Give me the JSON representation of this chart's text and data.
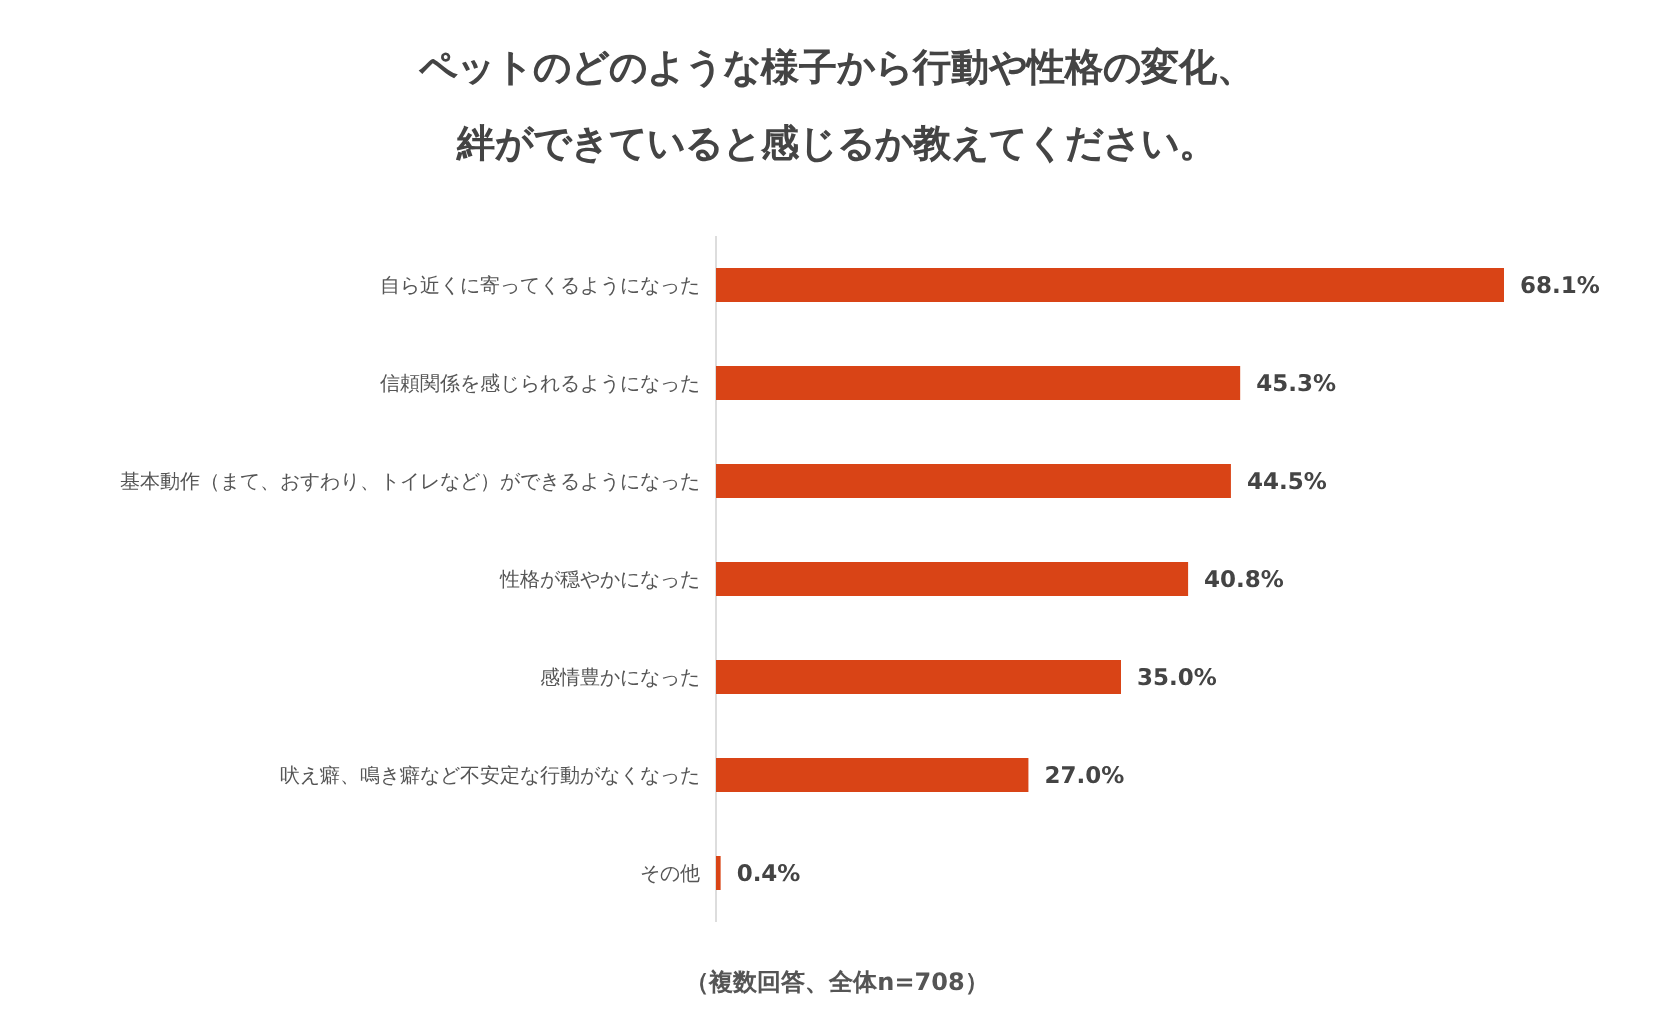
{
  "chart_data": {
    "type": "bar",
    "orientation": "horizontal",
    "title": "ペットのどのような様子から行動や性格の変化、絆ができていると感じるか教えてください。",
    "categories": [
      "自ら近くに寄ってくるようになった",
      "信頼関係を感じられるようになった",
      "基本動作（まて、おすわり、トイレなど）ができるようになった",
      "性格が穏やかになった",
      "感情豊かになった",
      "吠え癖、鳴き癖など不安定な行動がなくなった",
      "その他"
    ],
    "values": [
      68.1,
      45.3,
      44.5,
      40.8,
      35.0,
      27.0,
      0.4
    ],
    "value_labels": [
      "68.1%",
      "45.3%",
      "44.5%",
      "40.8%",
      "35.0%",
      "27.0%",
      "0.4%"
    ],
    "color": "#d94416",
    "annotations": [
      "（複数回答、全体n=708）"
    ]
  }
}
